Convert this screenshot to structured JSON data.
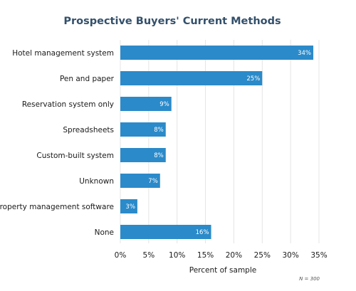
{
  "chart_data": {
    "type": "bar",
    "orientation": "horizontal",
    "title": "Prospective Buyers' Current Methods",
    "categories": [
      "Hotel management system",
      "Pen and paper",
      "Reservation system only",
      "Spreadsheets",
      "Custom-built system",
      "Unknown",
      "Property management software",
      "None"
    ],
    "values": [
      34,
      25,
      9,
      8,
      8,
      7,
      3,
      16
    ],
    "data_labels": [
      "34%",
      "25%",
      "9%",
      "8%",
      "8%",
      "7%",
      "3%",
      "16%"
    ],
    "xlabel": "Percent of sample",
    "ylabel": "",
    "xlim": [
      0,
      35
    ],
    "xticks": [
      0,
      5,
      10,
      15,
      20,
      25,
      30,
      35
    ],
    "xtick_labels": [
      "0%",
      "5%",
      "10%",
      "15%",
      "20%",
      "25%",
      "30%",
      "35%"
    ],
    "grid": "vertical",
    "bar_color": "#2b8ac9",
    "note": "N = 300"
  }
}
